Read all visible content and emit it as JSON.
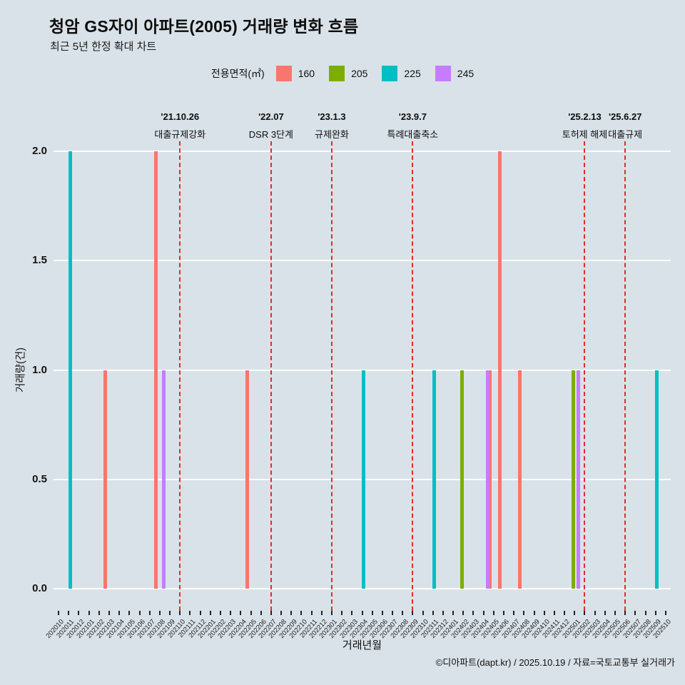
{
  "header": {
    "title": "청암 GS자이 아파트(2005) 거래량 변화 흐름",
    "subtitle": "최근 5년 한정 확대 차트"
  },
  "legend": {
    "label": "전용면적(㎡)",
    "items": [
      {
        "label": "160",
        "color": "#F8766D"
      },
      {
        "label": "205",
        "color": "#7CAE00"
      },
      {
        "label": "225",
        "color": "#00BFC4"
      },
      {
        "label": "245",
        "color": "#C77CFF"
      }
    ]
  },
  "footer": {
    "text": "©디아파트(dapt.kr) / 2025.10.19 / 자료=국토교통부 실거래가"
  },
  "colors": {
    "background": "#d9e2e8",
    "gridline": "#ffffff",
    "annotation_line": "#e12b2b"
  },
  "chart_data": {
    "type": "bar",
    "title": "청암 GS자이 아파트(2005) 거래량 변화 흐름",
    "subtitle": "최근 5년 한정 확대 차트",
    "xlabel": "거래년월",
    "ylabel": "거래량(건)",
    "ylim": [
      0,
      2
    ],
    "yticks": [
      0.0,
      0.5,
      1.0,
      1.5,
      2.0
    ],
    "ytick_labels": [
      "0.0",
      "0.5",
      "1.0",
      "1.5",
      "2.0"
    ],
    "grid": "horizontal-major-only",
    "legend_position": "top",
    "categories": [
      "202010",
      "202011",
      "202012",
      "202101",
      "202102",
      "202103",
      "202104",
      "202105",
      "202106",
      "202107",
      "202108",
      "202109",
      "202110",
      "202111",
      "202112",
      "202201",
      "202202",
      "202203",
      "202204",
      "202205",
      "202206",
      "202207",
      "202208",
      "202209",
      "202210",
      "202211",
      "202212",
      "202301",
      "202302",
      "202303",
      "202304",
      "202305",
      "202306",
      "202307",
      "202308",
      "202309",
      "202310",
      "202311",
      "202312",
      "202401",
      "202402",
      "202403",
      "202404",
      "202405",
      "202406",
      "202407",
      "202408",
      "202409",
      "202410",
      "202411",
      "202412",
      "202501",
      "202502",
      "202503",
      "202504",
      "202505",
      "202506",
      "202507",
      "202508",
      "202509",
      "202510"
    ],
    "series": [
      {
        "name": "160",
        "color": "#F8766D",
        "data": [
          {
            "x": "202103",
            "y": 1
          },
          {
            "x": "202108",
            "y": 2
          },
          {
            "x": "202205",
            "y": 1
          },
          {
            "x": "202405",
            "y": 1
          },
          {
            "x": "202406",
            "y": 2
          },
          {
            "x": "202408",
            "y": 1
          }
        ]
      },
      {
        "name": "205",
        "color": "#7CAE00",
        "data": [
          {
            "x": "202402",
            "y": 1
          },
          {
            "x": "202501",
            "y": 1
          }
        ]
      },
      {
        "name": "225",
        "color": "#00BFC4",
        "data": [
          {
            "x": "202011",
            "y": 2
          },
          {
            "x": "202304",
            "y": 1
          },
          {
            "x": "202311",
            "y": 1
          },
          {
            "x": "202509",
            "y": 1
          }
        ]
      },
      {
        "name": "245",
        "color": "#C77CFF",
        "data": [
          {
            "x": "202108",
            "y": 1
          },
          {
            "x": "202404",
            "y": 1
          },
          {
            "x": "202501",
            "y": 1
          }
        ]
      }
    ],
    "annotations": [
      {
        "month": "202110",
        "date": "'21.10.26",
        "label": "대출규제강화"
      },
      {
        "month": "202207",
        "date": "'22.07",
        "label": "DSR 3단계"
      },
      {
        "month": "202301",
        "date": "'23.1.3",
        "label": "규제완화"
      },
      {
        "month": "202309",
        "date": "'23.9.7",
        "label": "특례대출축소"
      },
      {
        "month": "202502",
        "date": "'25.2.13",
        "label": "토허제 해제"
      },
      {
        "month": "202506",
        "date": "'25.6.27",
        "label": "대출규제"
      }
    ]
  }
}
